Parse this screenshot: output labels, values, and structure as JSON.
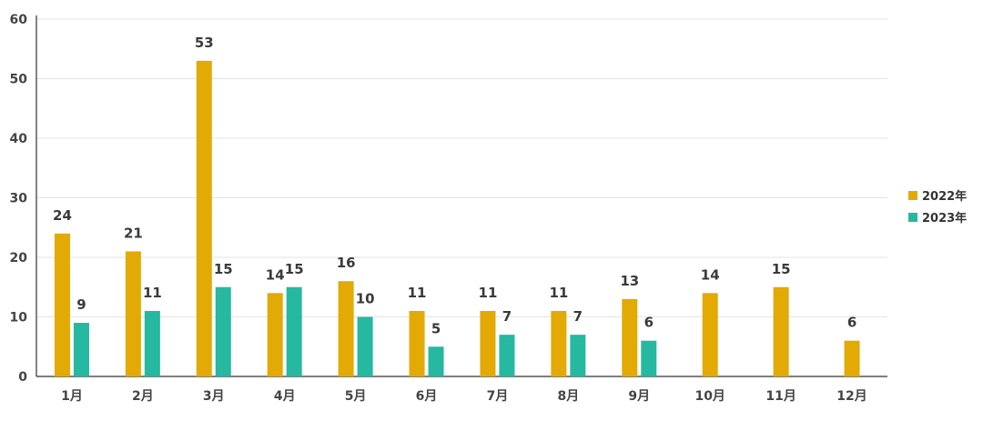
{
  "chart_data": {
    "type": "bar",
    "categories": [
      "1月",
      "2月",
      "3月",
      "4月",
      "5月",
      "6月",
      "7月",
      "8月",
      "9月",
      "10月",
      "11月",
      "12月"
    ],
    "series": [
      {
        "name": "2022年",
        "color": "#E3A905",
        "values": [
          24,
          21,
          53,
          14,
          16,
          11,
          11,
          11,
          13,
          14,
          15,
          6
        ]
      },
      {
        "name": "2023年",
        "color": "#26B8A0",
        "values": [
          9,
          11,
          15,
          15,
          10,
          5,
          7,
          7,
          6,
          null,
          null,
          null
        ]
      }
    ],
    "ylim": [
      0,
      60
    ],
    "yticks": [
      0,
      10,
      20,
      30,
      40,
      50,
      60
    ],
    "grid": true,
    "legend": "right",
    "title": "",
    "xlabel": "",
    "ylabel": ""
  }
}
